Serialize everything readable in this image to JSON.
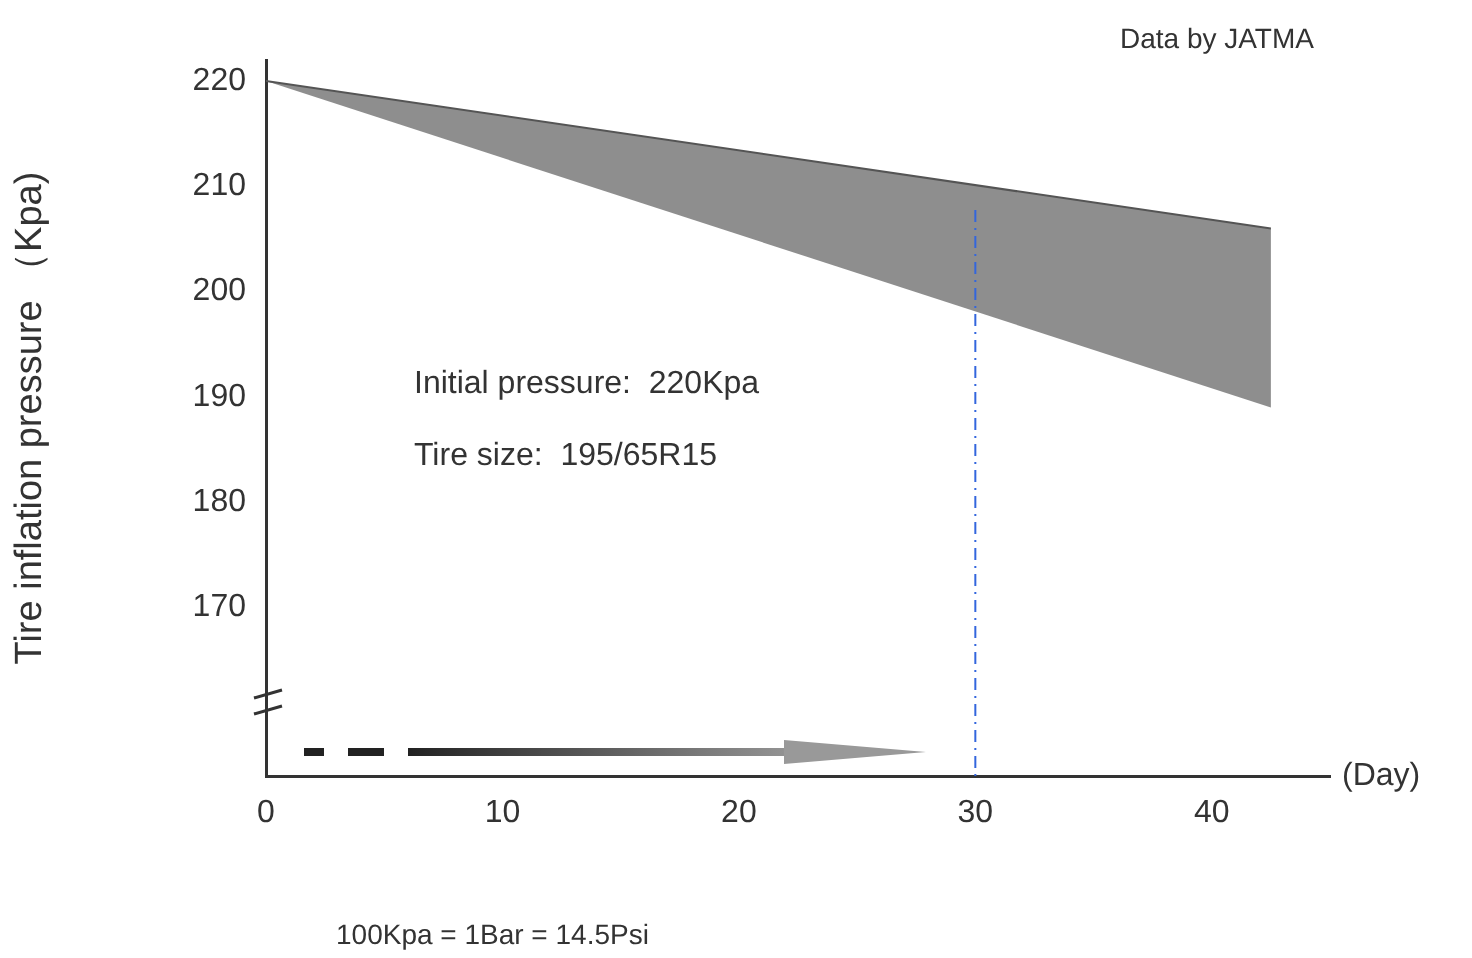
{
  "chart_data": {
    "type": "line",
    "xlabel": "(Day)",
    "ylabel": "Tire inflation pressure （Kpa)",
    "xlim": [
      0,
      45
    ],
    "xticks": [
      0,
      10,
      20,
      30,
      40
    ],
    "ylim": [
      154,
      222
    ],
    "yticks": [
      170,
      180,
      190,
      200,
      210,
      220
    ],
    "series": [
      {
        "color": "#555555",
        "x": [
          0,
          42.5
        ],
        "values": [
          220,
          206
        ],
        "lower": [
          220,
          189
        ],
        "upper": [
          220,
          206
        ]
      }
    ],
    "ref_lines": [
      {
        "axis": "x",
        "value": 30,
        "color": "#3366dd",
        "line_style": "dashed"
      }
    ],
    "annotations": [
      "Data by JATMA",
      "Initial pressure:  220Kpa",
      "Tire size:  195/65R15",
      "100Kpa = 1Bar = 14.5Psi"
    ],
    "grid": false,
    "legend": false
  }
}
